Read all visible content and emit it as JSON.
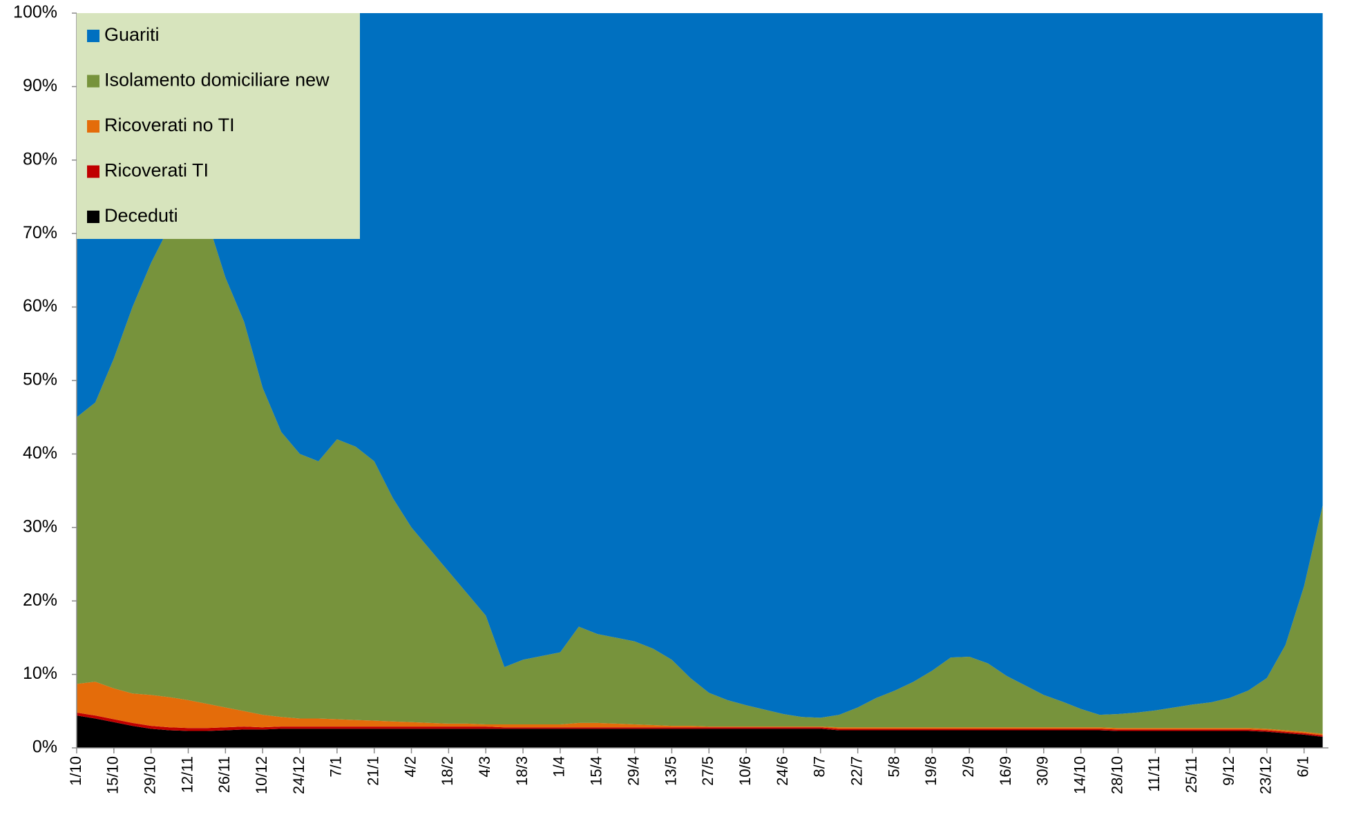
{
  "chart_data": {
    "type": "stacked_area",
    "categories": [
      "1/10",
      null,
      "15/10",
      null,
      "29/10",
      null,
      "12/11",
      null,
      "26/11",
      null,
      "10/12",
      null,
      "24/12",
      null,
      "7/1",
      null,
      "21/1",
      null,
      "4/2",
      null,
      "18/2",
      null,
      "4/3",
      null,
      "18/3",
      null,
      "1/4",
      null,
      "15/4",
      null,
      "29/4",
      null,
      "13/5",
      null,
      "27/5",
      null,
      "10/6",
      null,
      "24/6",
      null,
      "8/7",
      null,
      "22/7",
      null,
      "5/8",
      null,
      "19/8",
      null,
      "2/9",
      null,
      "16/9",
      null,
      "30/9",
      null,
      "14/10",
      null,
      "28/10",
      null,
      "11/11",
      null,
      "25/11",
      null,
      "9/12",
      null,
      "23/12",
      null,
      "6/1",
      null
    ],
    "series": [
      {
        "name": "Guariti",
        "color": "#0070c0",
        "values": [
          55,
          53,
          47,
          40,
          34,
          29,
          26,
          28,
          36,
          42,
          51,
          57,
          60,
          61,
          58,
          59,
          61,
          66,
          70,
          73,
          76,
          79,
          82,
          89,
          88,
          87.5,
          87,
          83.5,
          84.5,
          85,
          85.5,
          86.5,
          88,
          90.5,
          92.5,
          93.5,
          94.2,
          94.8,
          95.4,
          95.8,
          95.9,
          95.5,
          94.5,
          93.2,
          92.2,
          91,
          89.5,
          87.7,
          87.6,
          88.5,
          90.2,
          91.5,
          92.8,
          93.7,
          94.7,
          95.5,
          95.4,
          95.2,
          94.9,
          94.5,
          94.1,
          93.8,
          93.2,
          92.2,
          90.5,
          86,
          78,
          67
        ]
      },
      {
        "name": "Isolamento domiciliare new",
        "color": "#77933c",
        "values": [
          36.3,
          38,
          44.9,
          52.6,
          58.8,
          64.1,
          67.5,
          66,
          58.5,
          53,
          44.5,
          38.8,
          36,
          35,
          38.1,
          37.2,
          35.3,
          30.4,
          26.5,
          23.6,
          20.7,
          17.7,
          14.8,
          7.8,
          8.8,
          9.3,
          9.8,
          13.1,
          12.1,
          11.7,
          11.3,
          10.4,
          9,
          6.5,
          4.6,
          3.6,
          2.9,
          2.3,
          1.7,
          1.3,
          1.2,
          1.7,
          2.7,
          4,
          5,
          6.2,
          7.7,
          9.5,
          9.6,
          8.7,
          7,
          5.7,
          4.4,
          3.5,
          2.5,
          1.7,
          1.9,
          2.1,
          2.4,
          2.8,
          3.2,
          3.5,
          4.1,
          5.1,
          6.9,
          11.6,
          19.8,
          31.1
        ]
      },
      {
        "name": "Ricoverati no TI",
        "color": "#e46c0a",
        "values": [
          3.9,
          4.6,
          4.2,
          4.0,
          4.2,
          4.1,
          3.8,
          3.3,
          2.7,
          2.1,
          1.7,
          1.3,
          1.1,
          1.1,
          1.0,
          0.9,
          0.8,
          0.7,
          0.6,
          0.5,
          0.4,
          0.4,
          0.3,
          0.4,
          0.4,
          0.4,
          0.4,
          0.6,
          0.6,
          0.5,
          0.4,
          0.3,
          0.2,
          0.2,
          0.1,
          0.1,
          0.1,
          0.1,
          0.1,
          0.1,
          0.1,
          0.2,
          0.2,
          0.2,
          0.2,
          0.2,
          0.2,
          0.2,
          0.2,
          0.2,
          0.2,
          0.2,
          0.2,
          0.2,
          0.2,
          0.2,
          0.2,
          0.2,
          0.2,
          0.2,
          0.2,
          0.2,
          0.2,
          0.2,
          0.2,
          0.2,
          0.2,
          0.2
        ]
      },
      {
        "name": "Ricoverati TI",
        "color": "#c00000",
        "values": [
          0.4,
          0.4,
          0.4,
          0.4,
          0.4,
          0.4,
          0.4,
          0.4,
          0.4,
          0.4,
          0.3,
          0.3,
          0.3,
          0.3,
          0.3,
          0.3,
          0.3,
          0.3,
          0.3,
          0.3,
          0.3,
          0.3,
          0.3,
          0.2,
          0.2,
          0.2,
          0.2,
          0.2,
          0.2,
          0.2,
          0.2,
          0.2,
          0.2,
          0.2,
          0.2,
          0.2,
          0.2,
          0.2,
          0.2,
          0.2,
          0.2,
          0.2,
          0.2,
          0.2,
          0.2,
          0.2,
          0.2,
          0.2,
          0.2,
          0.2,
          0.2,
          0.2,
          0.2,
          0.2,
          0.2,
          0.2,
          0.2,
          0.2,
          0.2,
          0.2,
          0.2,
          0.2,
          0.2,
          0.2,
          0.2,
          0.2,
          0.2,
          0.2
        ]
      },
      {
        "name": "Deceduti",
        "color": "#000000",
        "values": [
          4.4,
          4.0,
          3.5,
          3.0,
          2.6,
          2.4,
          2.3,
          2.3,
          2.4,
          2.5,
          2.5,
          2.6,
          2.6,
          2.6,
          2.6,
          2.6,
          2.6,
          2.6,
          2.6,
          2.6,
          2.6,
          2.6,
          2.6,
          2.6,
          2.6,
          2.6,
          2.6,
          2.6,
          2.6,
          2.6,
          2.6,
          2.6,
          2.6,
          2.6,
          2.6,
          2.6,
          2.6,
          2.6,
          2.6,
          2.6,
          2.6,
          2.4,
          2.4,
          2.4,
          2.4,
          2.4,
          2.4,
          2.4,
          2.4,
          2.4,
          2.4,
          2.4,
          2.4,
          2.4,
          2.4,
          2.4,
          2.3,
          2.3,
          2.3,
          2.3,
          2.3,
          2.3,
          2.3,
          2.3,
          2.2,
          2.0,
          1.8,
          1.5
        ]
      }
    ],
    "ylim": [
      0,
      100
    ],
    "yticks": [
      {
        "value": 0,
        "label": "0%"
      },
      {
        "value": 10,
        "label": "10%"
      },
      {
        "value": 20,
        "label": "20%"
      },
      {
        "value": 30,
        "label": "30%"
      },
      {
        "value": 40,
        "label": "40%"
      },
      {
        "value": 50,
        "label": "50%"
      },
      {
        "value": 60,
        "label": "60%"
      },
      {
        "value": 70,
        "label": "70%"
      },
      {
        "value": 80,
        "label": "80%"
      },
      {
        "value": 90,
        "label": "90%"
      },
      {
        "value": 100,
        "label": "100%"
      }
    ],
    "legend": "upper left",
    "grid": false
  }
}
